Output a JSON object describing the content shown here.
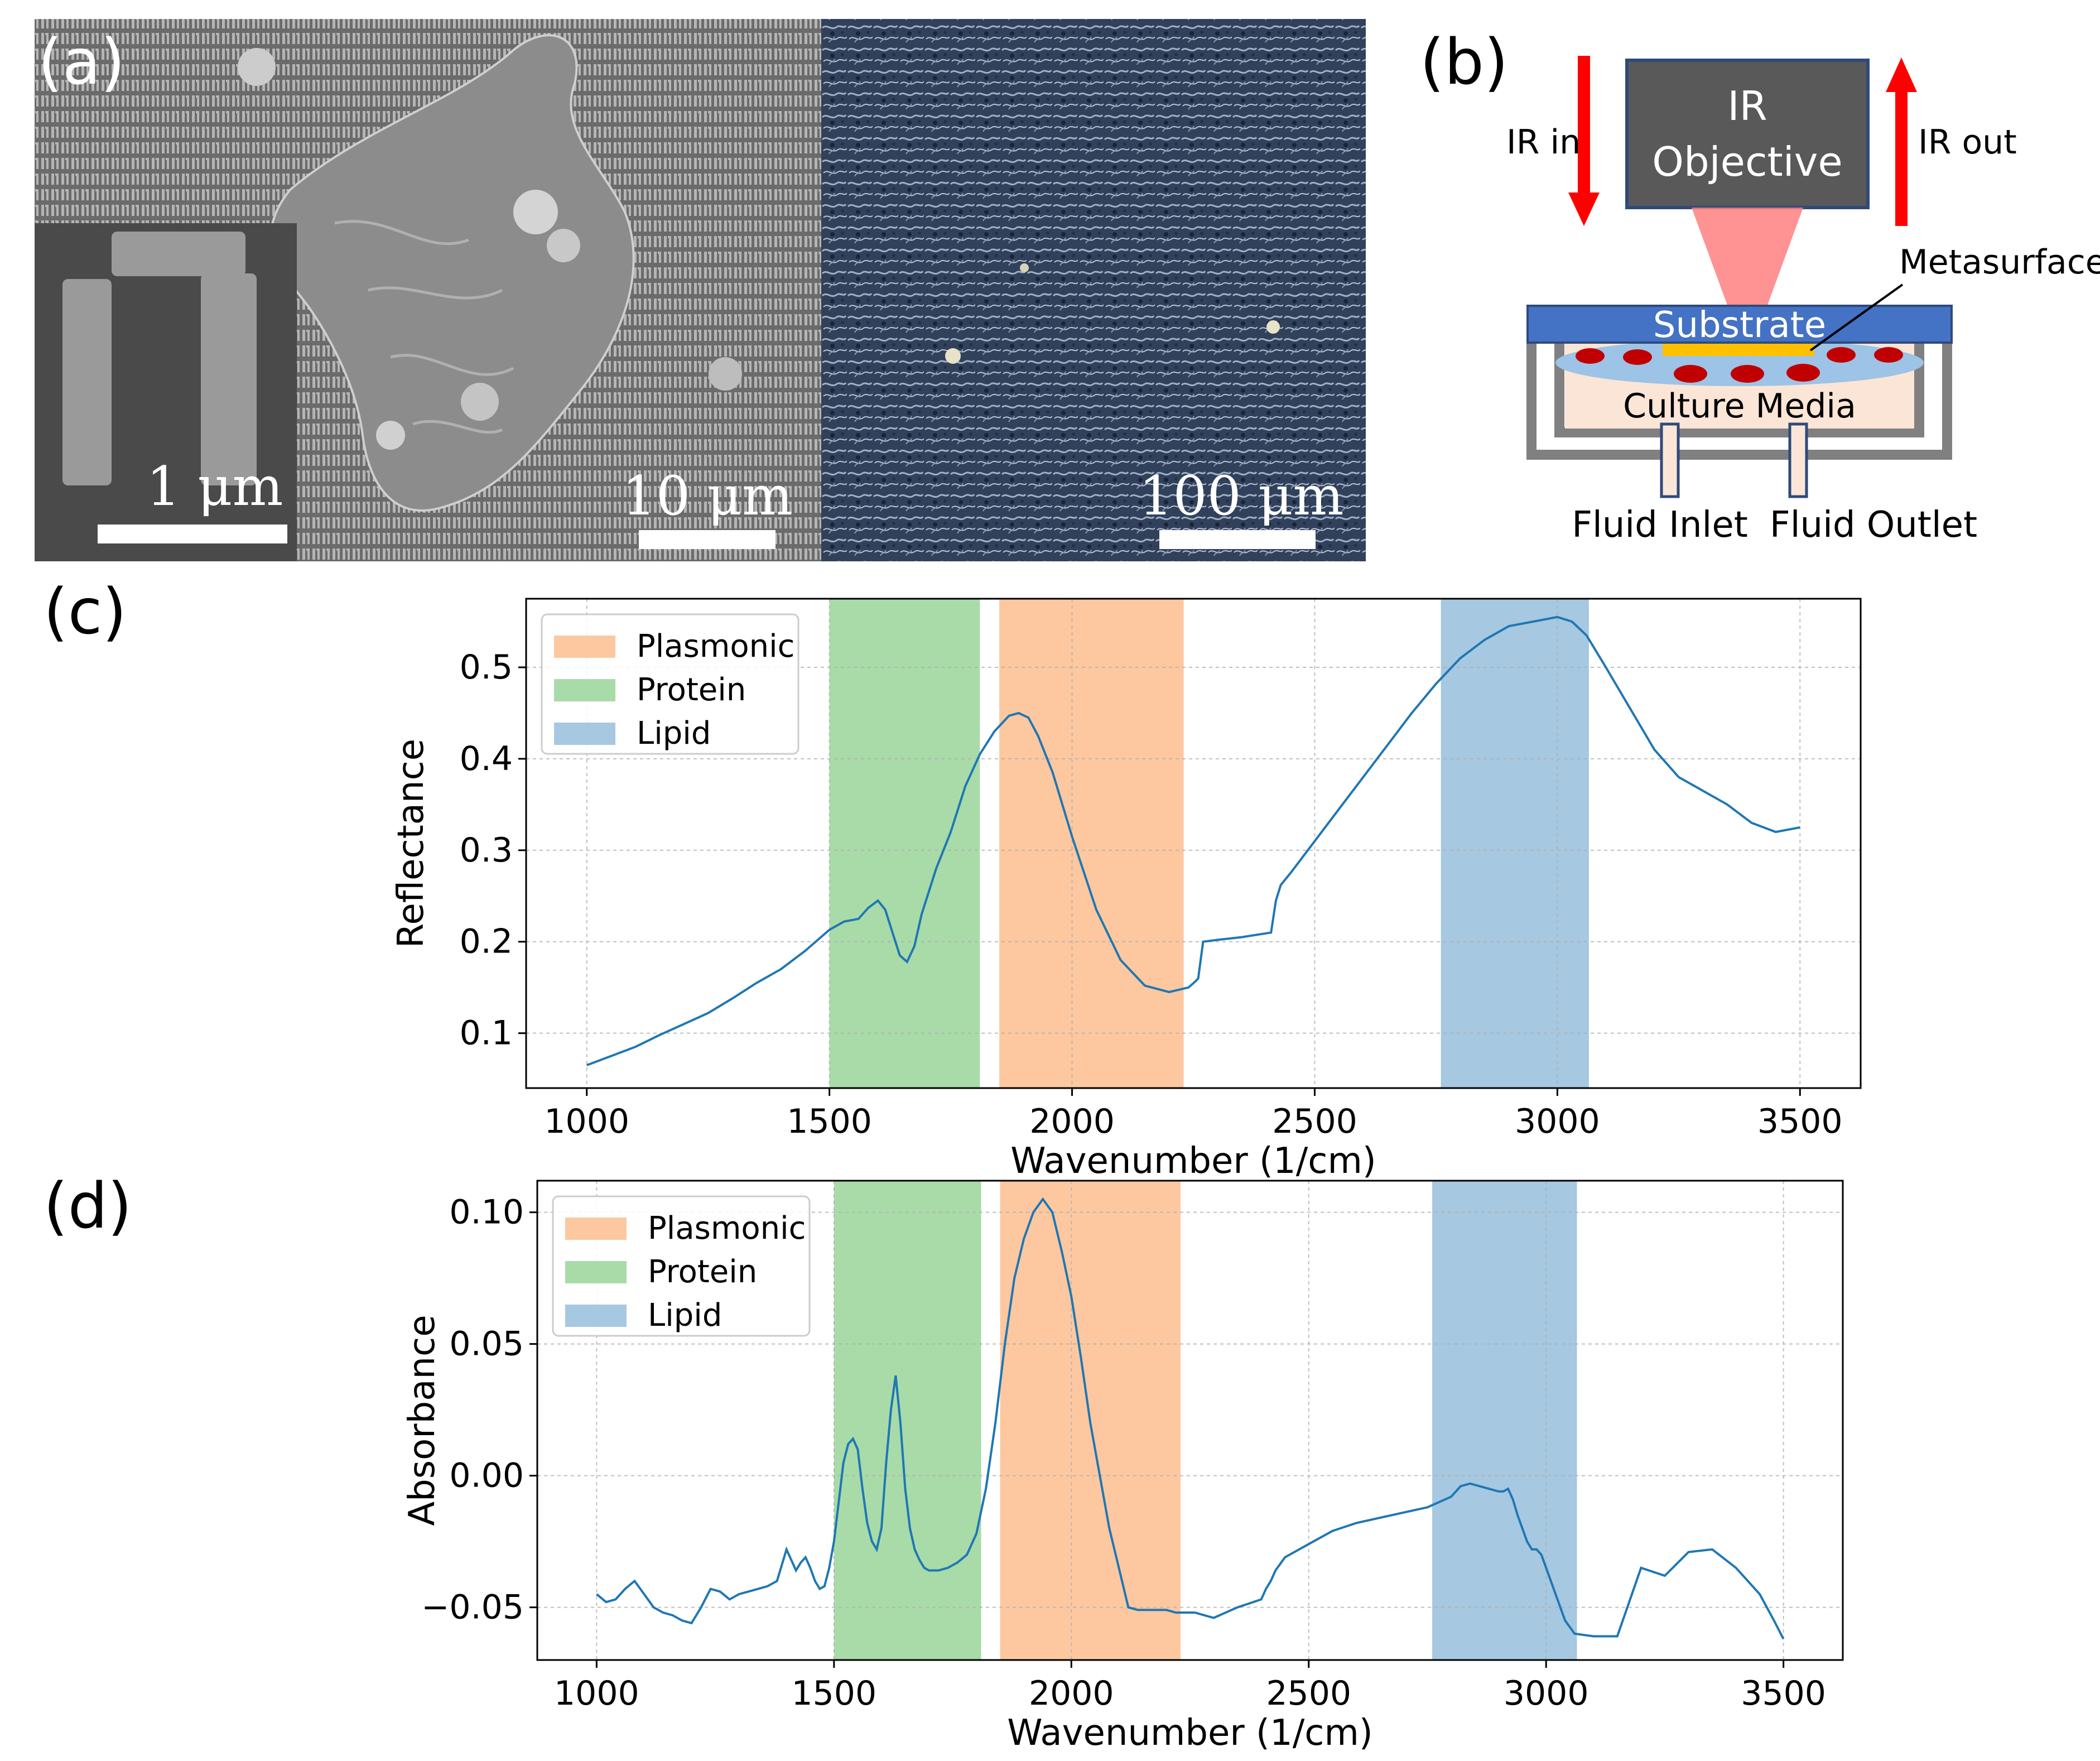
{
  "panel_a": {
    "label": "(a)",
    "scalebars": [
      {
        "label": "1 μm"
      },
      {
        "label": "10 μm"
      },
      {
        "label": "100 μm"
      }
    ]
  },
  "panel_b": {
    "label": "(b)",
    "ir_in": "IR in",
    "ir_out": "IR out",
    "objective_line1": "IR",
    "objective_line2": "Objective",
    "metasurface": "Metasurface",
    "substrate": "Substrate",
    "culture_media": "Culture Media",
    "fluid_inlet": "Fluid Inlet",
    "fluid_outlet": "Fluid Outlet",
    "colors": {
      "arrow": "#ff0000",
      "objective": "#595959",
      "substrate": "#4472c4",
      "beam": "#ff8080",
      "cell": "#c00000",
      "metasurface": "#ffc000",
      "media": "#fbe5d6"
    }
  },
  "chart_data": [
    {
      "panel_label": "(c)",
      "type": "line",
      "xlabel": "Wavenumber (1/cm)",
      "ylabel": "Reflectance",
      "xlim": [
        875,
        3625
      ],
      "ylim": [
        0.04,
        0.575
      ],
      "xticks": [
        1000,
        1500,
        2000,
        2500,
        3000,
        3500
      ],
      "yticks": [
        0.1,
        0.2,
        0.3,
        0.4,
        0.5
      ],
      "ytick_labels": [
        "0.1",
        "0.2",
        "0.3",
        "0.4",
        "0.5"
      ],
      "grid": true,
      "legend_position": "top-left",
      "line_color": "#1f77b4",
      "bands": [
        {
          "name": "Plasmonic",
          "x0": 1850,
          "x1": 2230,
          "color": "#fdc8a0"
        },
        {
          "name": "Protein",
          "x0": 1500,
          "x1": 1810,
          "color": "#a8dba8"
        },
        {
          "name": "Lipid",
          "x0": 2760,
          "x1": 3065,
          "color": "#a6c8e0"
        }
      ],
      "x": [
        1000,
        1050,
        1100,
        1150,
        1200,
        1250,
        1300,
        1350,
        1400,
        1450,
        1500,
        1530,
        1560,
        1580,
        1600,
        1615,
        1630,
        1645,
        1660,
        1675,
        1690,
        1720,
        1750,
        1780,
        1810,
        1840,
        1870,
        1890,
        1910,
        1930,
        1960,
        2000,
        2050,
        2100,
        2150,
        2200,
        2240,
        2255,
        2260,
        2270,
        2300,
        2350,
        2410,
        2420,
        2430,
        2450,
        2500,
        2550,
        2600,
        2650,
        2700,
        2750,
        2800,
        2850,
        2900,
        2950,
        3000,
        3030,
        3060,
        3100,
        3150,
        3200,
        3250,
        3300,
        3350,
        3400,
        3450,
        3500
      ],
      "y": [
        0.065,
        0.075,
        0.085,
        0.098,
        0.11,
        0.122,
        0.138,
        0.155,
        0.17,
        0.19,
        0.213,
        0.222,
        0.225,
        0.237,
        0.245,
        0.235,
        0.21,
        0.185,
        0.178,
        0.195,
        0.23,
        0.28,
        0.32,
        0.37,
        0.405,
        0.43,
        0.447,
        0.45,
        0.445,
        0.425,
        0.385,
        0.315,
        0.235,
        0.18,
        0.152,
        0.145,
        0.15,
        0.157,
        0.16,
        0.2,
        0.202,
        0.205,
        0.21,
        0.245,
        0.262,
        0.275,
        0.31,
        0.345,
        0.38,
        0.415,
        0.45,
        0.482,
        0.51,
        0.53,
        0.545,
        0.55,
        0.555,
        0.55,
        0.535,
        0.5,
        0.455,
        0.41,
        0.38,
        0.365,
        0.35,
        0.33,
        0.32,
        0.325
      ]
    },
    {
      "panel_label": "(d)",
      "type": "line",
      "xlabel": "Wavenumber (1/cm)",
      "ylabel": "Absorbance",
      "xlim": [
        875,
        3625
      ],
      "ylim": [
        -0.07,
        0.112
      ],
      "xticks": [
        1000,
        1500,
        2000,
        2500,
        3000,
        3500
      ],
      "yticks": [
        -0.05,
        0.0,
        0.05,
        0.1
      ],
      "ytick_labels": [
        "−0.05",
        "0.00",
        "0.05",
        "0.10"
      ],
      "grid": true,
      "legend_position": "top-left",
      "line_color": "#1f77b4",
      "bands": [
        {
          "name": "Plasmonic",
          "x0": 1850,
          "x1": 2230,
          "color": "#fdc8a0"
        },
        {
          "name": "Protein",
          "x0": 1500,
          "x1": 1810,
          "color": "#a8dba8"
        },
        {
          "name": "Lipid",
          "x0": 2760,
          "x1": 3065,
          "color": "#a6c8e0"
        }
      ],
      "x": [
        1000,
        1020,
        1040,
        1060,
        1080,
        1100,
        1120,
        1140,
        1160,
        1180,
        1200,
        1220,
        1240,
        1260,
        1280,
        1300,
        1320,
        1340,
        1360,
        1380,
        1400,
        1410,
        1420,
        1430,
        1440,
        1450,
        1460,
        1470,
        1480,
        1490,
        1500,
        1510,
        1520,
        1530,
        1540,
        1550,
        1560,
        1570,
        1580,
        1590,
        1600,
        1610,
        1620,
        1630,
        1640,
        1650,
        1660,
        1670,
        1680,
        1690,
        1700,
        1720,
        1740,
        1760,
        1780,
        1800,
        1820,
        1840,
        1860,
        1880,
        1900,
        1920,
        1940,
        1960,
        1980,
        2000,
        2020,
        2040,
        2060,
        2080,
        2100,
        2120,
        2140,
        2160,
        2180,
        2200,
        2220,
        2240,
        2260,
        2300,
        2350,
        2400,
        2410,
        2420,
        2430,
        2450,
        2500,
        2550,
        2600,
        2650,
        2700,
        2750,
        2800,
        2820,
        2840,
        2860,
        2880,
        2900,
        2910,
        2920,
        2930,
        2940,
        2950,
        2960,
        2970,
        2980,
        2990,
        3000,
        3020,
        3040,
        3060,
        3100,
        3150,
        3200,
        3250,
        3300,
        3350,
        3400,
        3450,
        3480,
        3500
      ],
      "y": [
        -0.045,
        -0.048,
        -0.047,
        -0.043,
        -0.04,
        -0.045,
        -0.05,
        -0.052,
        -0.053,
        -0.055,
        -0.056,
        -0.05,
        -0.043,
        -0.044,
        -0.047,
        -0.045,
        -0.044,
        -0.043,
        -0.042,
        -0.04,
        -0.028,
        -0.032,
        -0.036,
        -0.033,
        -0.031,
        -0.035,
        -0.04,
        -0.043,
        -0.042,
        -0.035,
        -0.025,
        -0.01,
        0.005,
        0.012,
        0.014,
        0.01,
        -0.005,
        -0.018,
        -0.025,
        -0.028,
        -0.02,
        0.005,
        0.025,
        0.038,
        0.02,
        -0.005,
        -0.02,
        -0.028,
        -0.032,
        -0.035,
        -0.036,
        -0.036,
        -0.035,
        -0.033,
        -0.03,
        -0.022,
        -0.005,
        0.02,
        0.05,
        0.075,
        0.09,
        0.1,
        0.105,
        0.1,
        0.085,
        0.068,
        0.045,
        0.02,
        0.0,
        -0.02,
        -0.035,
        -0.05,
        -0.051,
        -0.051,
        -0.051,
        -0.051,
        -0.052,
        -0.052,
        -0.052,
        -0.054,
        -0.05,
        -0.047,
        -0.043,
        -0.04,
        -0.036,
        -0.031,
        -0.026,
        -0.021,
        -0.018,
        -0.016,
        -0.014,
        -0.012,
        -0.008,
        -0.004,
        -0.003,
        -0.004,
        -0.005,
        -0.006,
        -0.006,
        -0.005,
        -0.009,
        -0.015,
        -0.02,
        -0.025,
        -0.028,
        -0.028,
        -0.03,
        -0.035,
        -0.045,
        -0.055,
        -0.06,
        -0.061,
        -0.061,
        -0.035,
        -0.038,
        -0.029,
        -0.028,
        -0.035,
        -0.045,
        -0.055,
        -0.062
      ]
    }
  ]
}
